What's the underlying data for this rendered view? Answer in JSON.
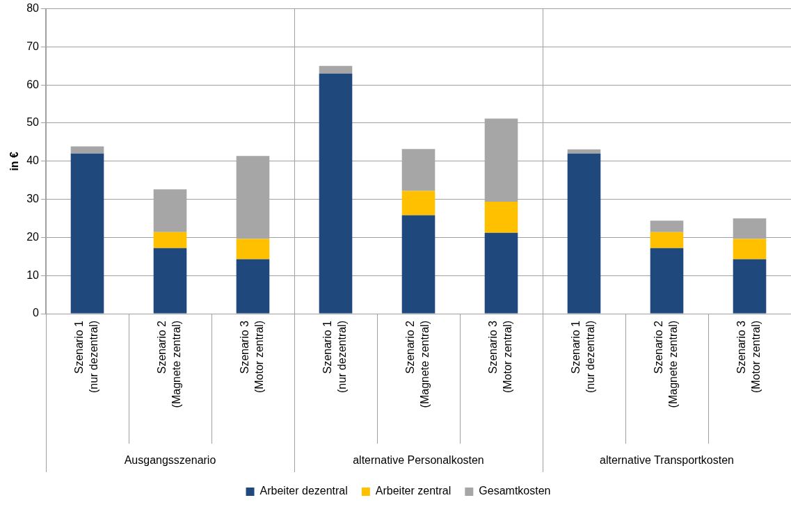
{
  "chart_data": {
    "type": "bar",
    "stacked": true,
    "ylabel": "in €",
    "categories": [
      "Szenario 1\n(nur dezentral)",
      "Szenario 2\n(Magnete zentral)",
      "Szenario 3\n(Motor zentral)",
      "Szenario 1\n(nur dezentral)",
      "Szenario 2\n(Magnete zentral)",
      "Szenario 3\n(Motor zentral)",
      "Szenario 1\n(nur dezentral)",
      "Szenario 2\n(Magnete zentral)",
      "Szenario 3\n(Motor zentral)"
    ],
    "series": [
      {
        "name": "Arbeiter dezentral",
        "color": "#1f497d",
        "values": [
          42,
          17.2,
          14.3,
          63,
          25.8,
          21.2,
          42,
          17.2,
          14.3
        ]
      },
      {
        "name": "Arbeiter zentral",
        "color": "#ffc000",
        "values": [
          0,
          4.2,
          5.3,
          0,
          6.4,
          8.2,
          0,
          4.2,
          5.3
        ]
      },
      {
        "name": "Gesamtkosten",
        "color": "#a6a6a6",
        "values": [
          1.9,
          11.2,
          21.8,
          2,
          11,
          21.8,
          1.1,
          3,
          5.4
        ]
      }
    ],
    "annotations": [
      "Ausgangsszenario",
      "alternative Personalkosten",
      "alternative Transportkosten"
    ],
    "ylim": [
      0,
      80
    ],
    "yticks": [
      0,
      10,
      20,
      30,
      40,
      50,
      60,
      70,
      80
    ],
    "grid": "y",
    "legend": "bottom"
  }
}
